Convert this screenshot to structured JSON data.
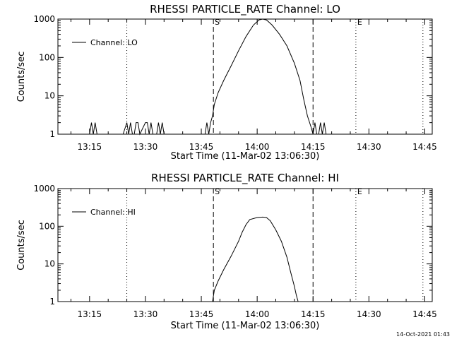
{
  "timestamp": "14-Oct-2021 01:43",
  "chart_data": [
    {
      "type": "line",
      "title": "RHESSI PARTICLE_RATE Channel: LO",
      "xlabel": "Start Time (11-Mar-02 13:06:30)",
      "ylabel": "Counts/sec",
      "yscale": "log",
      "ylim": [
        1,
        1000
      ],
      "xlim": [
        "13:06:30",
        "14:47:00"
      ],
      "x_ticks": [
        "13:15",
        "13:30",
        "13:45",
        "14:00",
        "14:15",
        "14:30",
        "14:45"
      ],
      "y_ticks": [
        "1",
        "10",
        "100",
        "1000"
      ],
      "legend": {
        "position": "top-left",
        "entries": [
          "Channel: LO"
        ]
      },
      "annotations": [
        {
          "label": "",
          "time": "13:25:00",
          "style": "dotted"
        },
        {
          "label": "S",
          "time": "13:48:15",
          "style": "dashed"
        },
        {
          "label": "",
          "time": "14:15:00",
          "style": "dashed"
        },
        {
          "label": "E",
          "time": "14:26:30",
          "style": "dotted"
        },
        {
          "label": "",
          "time": "14:44:30",
          "style": "dotted"
        }
      ],
      "series": [
        {
          "name": "Channel: LO",
          "x": [
            "13:06:30",
            "13:15:00",
            "13:15:30",
            "13:16:00",
            "13:16:30",
            "13:17:00",
            "13:17:30",
            "13:24:00",
            "13:25:00",
            "13:25:30",
            "13:26:00",
            "13:26:30",
            "13:27:00",
            "13:27:30",
            "13:28:00",
            "13:28:30",
            "13:30:00",
            "13:30:30",
            "13:31:00",
            "13:31:30",
            "13:32:00",
            "13:33:00",
            "13:33:30",
            "13:34:00",
            "13:34:30",
            "13:35:00",
            "13:35:30",
            "13:46:00",
            "13:46:30",
            "13:47:00",
            "13:47:30",
            "13:48:00",
            "13:48:30",
            "13:49:30",
            "13:51:00",
            "13:53:00",
            "13:55:00",
            "13:57:00",
            "13:59:00",
            "14:00:30",
            "14:01:30",
            "14:02:30",
            "14:04:00",
            "14:06:00",
            "14:08:00",
            "14:10:00",
            "14:11:30",
            "14:12:30",
            "14:13:30",
            "14:14:30",
            "14:15:00",
            "14:15:30",
            "14:16:00",
            "14:16:30",
            "14:17:00",
            "14:17:30",
            "14:18:00",
            "14:18:30",
            "14:19:00",
            "14:47:00"
          ],
          "y": [
            1,
            1,
            2,
            1,
            2,
            1,
            1,
            1,
            2,
            1,
            2,
            1,
            1,
            2,
            2,
            1,
            2,
            2,
            1,
            2,
            1,
            1,
            2,
            1,
            2,
            1,
            1,
            1,
            2,
            1,
            2,
            3,
            6,
            12,
            25,
            60,
            150,
            350,
            700,
            950,
            1000,
            950,
            700,
            400,
            200,
            70,
            25,
            8,
            3,
            1.5,
            1,
            2,
            1,
            1,
            2,
            1,
            2,
            1,
            1,
            1
          ]
        }
      ]
    },
    {
      "type": "line",
      "title": "RHESSI PARTICLE_RATE Channel: HI",
      "xlabel": "Start Time (11-Mar-02 13:06:30)",
      "ylabel": "Counts/sec",
      "yscale": "log",
      "ylim": [
        1,
        1000
      ],
      "xlim": [
        "13:06:30",
        "14:47:00"
      ],
      "x_ticks": [
        "13:15",
        "13:30",
        "13:45",
        "14:00",
        "14:15",
        "14:30",
        "14:45"
      ],
      "y_ticks": [
        "1",
        "10",
        "100",
        "1000"
      ],
      "legend": {
        "position": "top-left",
        "entries": [
          "Channel: HI"
        ]
      },
      "annotations": [
        {
          "label": "",
          "time": "13:25:00",
          "style": "dotted"
        },
        {
          "label": "S",
          "time": "13:48:15",
          "style": "dashed"
        },
        {
          "label": "",
          "time": "14:15:00",
          "style": "dashed"
        },
        {
          "label": "E",
          "time": "14:26:30",
          "style": "dotted"
        },
        {
          "label": "",
          "time": "14:44:30",
          "style": "dotted"
        }
      ],
      "series": [
        {
          "name": "Channel: HI",
          "x": [
            "13:48:00",
            "13:48:30",
            "13:49:30",
            "13:51:00",
            "13:53:00",
            "13:55:00",
            "13:56:00",
            "13:57:00",
            "13:58:00",
            "14:00:00",
            "14:01:30",
            "14:02:30",
            "14:03:30",
            "14:05:00",
            "14:06:30",
            "14:08:00",
            "14:09:00",
            "14:10:00",
            "14:10:30",
            "14:11:00"
          ],
          "y": [
            1,
            2,
            3.5,
            7,
            16,
            40,
            70,
            110,
            150,
            170,
            175,
            170,
            140,
            80,
            40,
            15,
            6,
            2.5,
            1.5,
            1
          ]
        }
      ]
    }
  ]
}
